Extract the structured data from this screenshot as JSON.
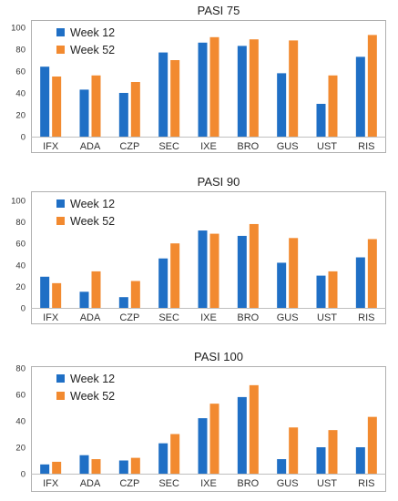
{
  "colors": {
    "week12": "#1f6fc5",
    "week52": "#f28a30",
    "axis": "#bfbfbf",
    "frame": "#b0b0b0"
  },
  "chart_data": [
    {
      "type": "bar",
      "title": "PASI 75",
      "categories": [
        "IFX",
        "ADA",
        "CZP",
        "SEC",
        "IXE",
        "BRO",
        "GUS",
        "UST",
        "RIS"
      ],
      "ylim": [
        0,
        100
      ],
      "yticks": [
        0,
        20,
        40,
        60,
        80,
        100
      ],
      "legend_position": "top-left",
      "series": [
        {
          "name": "Week 12",
          "values": [
            64,
            43,
            40,
            77,
            86,
            83,
            58,
            30,
            73
          ]
        },
        {
          "name": "Week 52",
          "values": [
            55,
            56,
            50,
            70,
            91,
            89,
            88,
            56,
            93
          ]
        }
      ]
    },
    {
      "type": "bar",
      "title": "PASI 90",
      "categories": [
        "IFX",
        "ADA",
        "CZP",
        "SEC",
        "IXE",
        "BRO",
        "GUS",
        "UST",
        "RIS"
      ],
      "ylim": [
        0,
        100
      ],
      "yticks": [
        0,
        20,
        40,
        60,
        80,
        100
      ],
      "legend_position": "top-left",
      "series": [
        {
          "name": "Week 12",
          "values": [
            29,
            15,
            10,
            46,
            72,
            67,
            42,
            30,
            47
          ]
        },
        {
          "name": "Week 52",
          "values": [
            23,
            34,
            25,
            60,
            69,
            78,
            65,
            34,
            64
          ]
        }
      ]
    },
    {
      "type": "bar",
      "title": "PASI 100",
      "categories": [
        "IFX",
        "ADA",
        "CZP",
        "SEC",
        "IXE",
        "BRO",
        "GUS",
        "UST",
        "RIS"
      ],
      "ylim": [
        0,
        80
      ],
      "yticks": [
        0,
        20,
        40,
        60,
        80
      ],
      "legend_position": "top-left",
      "series": [
        {
          "name": "Week 12",
          "values": [
            7,
            14,
            10,
            23,
            42,
            58,
            11,
            20,
            20
          ]
        },
        {
          "name": "Week 52",
          "values": [
            9,
            11,
            12,
            30,
            53,
            67,
            35,
            33,
            43
          ]
        }
      ]
    }
  ]
}
